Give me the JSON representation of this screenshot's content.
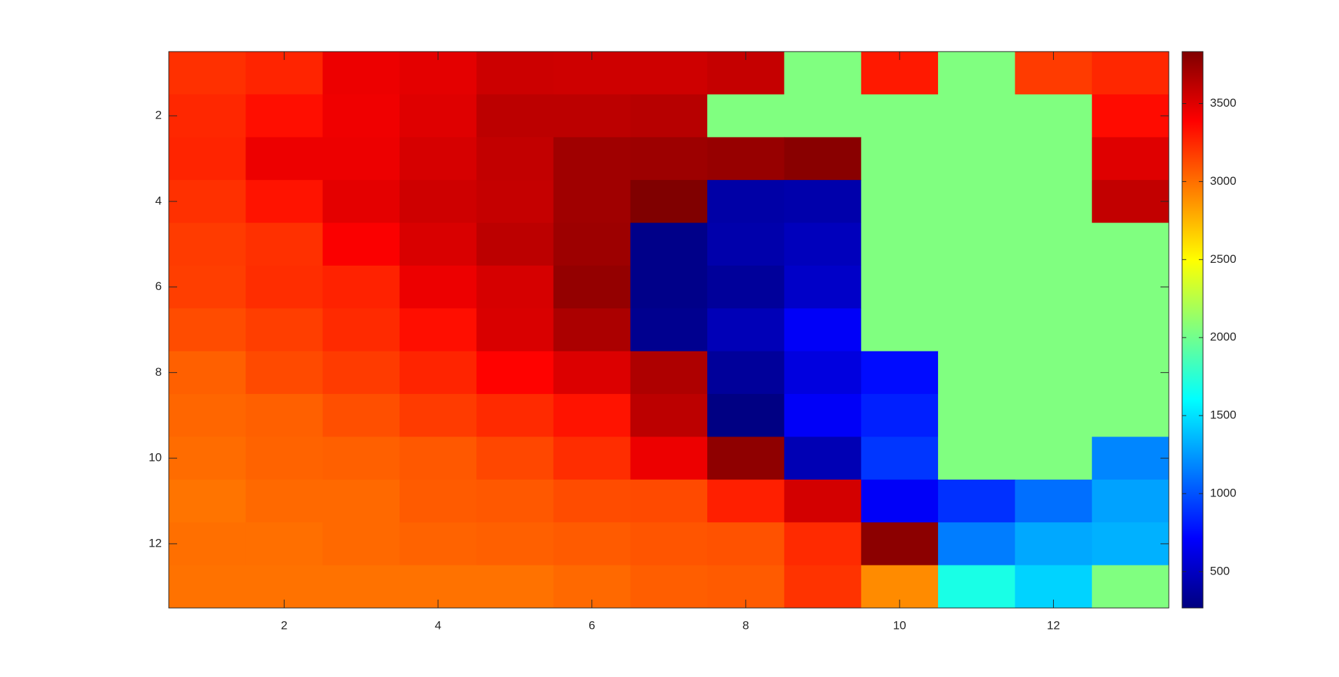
{
  "chart_data": {
    "type": "heatmap",
    "colormap": "jet",
    "x": [
      1,
      2,
      3,
      4,
      5,
      6,
      7,
      8,
      9,
      10,
      11,
      12,
      13
    ],
    "y": [
      1,
      2,
      3,
      4,
      5,
      6,
      7,
      8,
      9,
      10,
      11,
      12,
      13
    ],
    "xlim": [
      0.5,
      13.5
    ],
    "xticks": [
      2,
      4,
      6,
      8,
      10,
      12
    ],
    "ylim": [
      13.5,
      0.5
    ],
    "yticks": [
      2,
      4,
      6,
      8,
      10,
      12
    ],
    "colorbar": {
      "lim": [
        267,
        3833
      ],
      "ticks": [
        500,
        1000,
        1500,
        2000,
        2500,
        3000,
        3500
      ]
    },
    "z": [
      [
        3220,
        3260,
        3450,
        3480,
        3566,
        3560,
        3560,
        3590,
        2050,
        3300,
        2050,
        3180,
        3250
      ],
      [
        3250,
        3340,
        3440,
        3500,
        3620,
        3620,
        3640,
        2050,
        2050,
        2050,
        2050,
        2050,
        3350
      ],
      [
        3260,
        3450,
        3450,
        3530,
        3600,
        3720,
        3730,
        3750,
        3800,
        2050,
        2050,
        2050,
        3500
      ],
      [
        3220,
        3320,
        3480,
        3560,
        3590,
        3720,
        3830,
        400,
        420,
        2050,
        2050,
        2050,
        3600
      ],
      [
        3180,
        3220,
        3400,
        3520,
        3620,
        3730,
        300,
        420,
        480,
        2050,
        2050,
        2050,
        2050
      ],
      [
        3170,
        3230,
        3270,
        3450,
        3530,
        3760,
        300,
        360,
        520,
        2050,
        2050,
        2050,
        2050
      ],
      [
        3120,
        3170,
        3240,
        3340,
        3520,
        3680,
        320,
        460,
        690,
        2050,
        2050,
        2050,
        2050
      ],
      [
        3050,
        3130,
        3180,
        3260,
        3380,
        3510,
        3670,
        360,
        600,
        750,
        2050,
        2050,
        2050
      ],
      [
        3030,
        3050,
        3110,
        3180,
        3240,
        3320,
        3620,
        280,
        690,
        820,
        2050,
        2050,
        2050
      ],
      [
        3010,
        3040,
        3050,
        3080,
        3140,
        3230,
        3450,
        3780,
        450,
        900,
        2050,
        2050,
        1180
      ],
      [
        2980,
        3020,
        3020,
        3070,
        3080,
        3120,
        3130,
        3280,
        3540,
        690,
        880,
        1100,
        1280
      ],
      [
        3000,
        3000,
        3020,
        3040,
        3050,
        3070,
        3090,
        3100,
        3240,
        3790,
        1150,
        1300,
        1330
      ],
      [
        2990,
        2990,
        2990,
        2990,
        2990,
        3020,
        3060,
        3070,
        3210,
        2900,
        1690,
        1450,
        2050
      ]
    ]
  }
}
